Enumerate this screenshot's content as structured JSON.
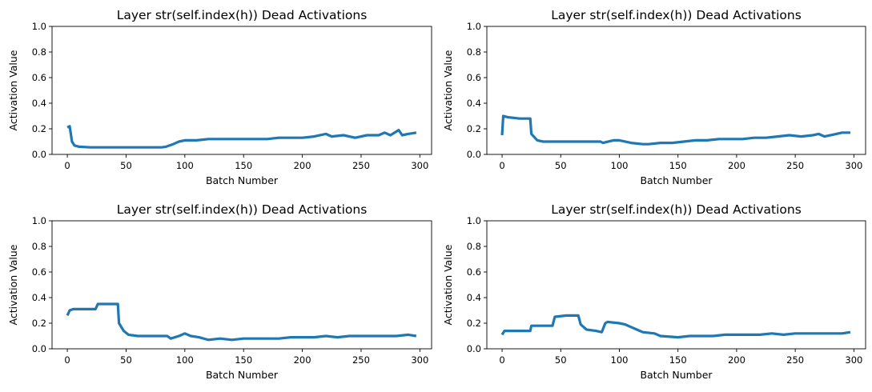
{
  "chart_data": [
    {
      "type": "line",
      "title": "Layer str(self.index(h)) Dead Activations",
      "xlabel": "Batch Number",
      "ylabel": "Activation Value",
      "xlim": [
        -13,
        310
      ],
      "ylim": [
        0,
        1
      ],
      "xticks": [
        0,
        50,
        100,
        150,
        200,
        250,
        300
      ],
      "yticks": [
        0.0,
        0.2,
        0.4,
        0.6,
        0.8,
        1.0
      ],
      "series": [
        {
          "color": "#1f77b4",
          "points": [
            [
              0,
              0.21
            ],
            [
              2,
              0.22
            ],
            [
              4,
              0.1
            ],
            [
              6,
              0.07
            ],
            [
              10,
              0.06
            ],
            [
              20,
              0.055
            ],
            [
              40,
              0.055
            ],
            [
              60,
              0.055
            ],
            [
              80,
              0.055
            ],
            [
              84,
              0.06
            ],
            [
              90,
              0.08
            ],
            [
              95,
              0.1
            ],
            [
              100,
              0.11
            ],
            [
              110,
              0.11
            ],
            [
              120,
              0.12
            ],
            [
              130,
              0.12
            ],
            [
              140,
              0.12
            ],
            [
              150,
              0.12
            ],
            [
              160,
              0.12
            ],
            [
              170,
              0.12
            ],
            [
              180,
              0.13
            ],
            [
              190,
              0.13
            ],
            [
              200,
              0.13
            ],
            [
              210,
              0.14
            ],
            [
              220,
              0.16
            ],
            [
              225,
              0.14
            ],
            [
              235,
              0.15
            ],
            [
              245,
              0.13
            ],
            [
              255,
              0.15
            ],
            [
              265,
              0.15
            ],
            [
              270,
              0.17
            ],
            [
              275,
              0.15
            ],
            [
              282,
              0.19
            ],
            [
              285,
              0.15
            ],
            [
              290,
              0.16
            ],
            [
              297,
              0.17
            ]
          ]
        }
      ]
    },
    {
      "type": "line",
      "title": "Layer str(self.index(h)) Dead Activations",
      "xlabel": "Batch Number",
      "ylabel": "Activation Value",
      "xlim": [
        -13,
        310
      ],
      "ylim": [
        0,
        1
      ],
      "xticks": [
        0,
        50,
        100,
        150,
        200,
        250,
        300
      ],
      "yticks": [
        0.0,
        0.2,
        0.4,
        0.6,
        0.8,
        1.0
      ],
      "series": [
        {
          "color": "#1f77b4",
          "points": [
            [
              0,
              0.15
            ],
            [
              1,
              0.3
            ],
            [
              5,
              0.29
            ],
            [
              15,
              0.28
            ],
            [
              24,
              0.28
            ],
            [
              25,
              0.16
            ],
            [
              30,
              0.11
            ],
            [
              35,
              0.1
            ],
            [
              50,
              0.1
            ],
            [
              70,
              0.1
            ],
            [
              84,
              0.1
            ],
            [
              86,
              0.09
            ],
            [
              95,
              0.11
            ],
            [
              100,
              0.11
            ],
            [
              110,
              0.09
            ],
            [
              120,
              0.08
            ],
            [
              125,
              0.08
            ],
            [
              135,
              0.09
            ],
            [
              145,
              0.09
            ],
            [
              155,
              0.1
            ],
            [
              165,
              0.11
            ],
            [
              175,
              0.11
            ],
            [
              185,
              0.12
            ],
            [
              195,
              0.12
            ],
            [
              205,
              0.12
            ],
            [
              215,
              0.13
            ],
            [
              225,
              0.13
            ],
            [
              235,
              0.14
            ],
            [
              245,
              0.15
            ],
            [
              255,
              0.14
            ],
            [
              265,
              0.15
            ],
            [
              270,
              0.16
            ],
            [
              275,
              0.14
            ],
            [
              285,
              0.16
            ],
            [
              290,
              0.17
            ],
            [
              297,
              0.17
            ]
          ]
        }
      ]
    },
    {
      "type": "line",
      "title": "Layer str(self.index(h)) Dead Activations",
      "xlabel": "Batch Number",
      "ylabel": "Activation Value",
      "xlim": [
        -13,
        310
      ],
      "ylim": [
        0,
        1
      ],
      "xticks": [
        0,
        50,
        100,
        150,
        200,
        250,
        300
      ],
      "yticks": [
        0.0,
        0.2,
        0.4,
        0.6,
        0.8,
        1.0
      ],
      "series": [
        {
          "color": "#1f77b4",
          "points": [
            [
              0,
              0.26
            ],
            [
              2,
              0.3
            ],
            [
              5,
              0.31
            ],
            [
              15,
              0.31
            ],
            [
              24,
              0.31
            ],
            [
              26,
              0.35
            ],
            [
              30,
              0.35
            ],
            [
              40,
              0.35
            ],
            [
              43,
              0.35
            ],
            [
              44,
              0.2
            ],
            [
              48,
              0.14
            ],
            [
              52,
              0.11
            ],
            [
              60,
              0.1
            ],
            [
              75,
              0.1
            ],
            [
              85,
              0.1
            ],
            [
              88,
              0.08
            ],
            [
              95,
              0.1
            ],
            [
              100,
              0.12
            ],
            [
              105,
              0.1
            ],
            [
              112,
              0.09
            ],
            [
              120,
              0.07
            ],
            [
              130,
              0.08
            ],
            [
              140,
              0.07
            ],
            [
              150,
              0.08
            ],
            [
              160,
              0.08
            ],
            [
              170,
              0.08
            ],
            [
              180,
              0.08
            ],
            [
              190,
              0.09
            ],
            [
              200,
              0.09
            ],
            [
              210,
              0.09
            ],
            [
              220,
              0.1
            ],
            [
              230,
              0.09
            ],
            [
              240,
              0.1
            ],
            [
              250,
              0.1
            ],
            [
              260,
              0.1
            ],
            [
              270,
              0.1
            ],
            [
              280,
              0.1
            ],
            [
              290,
              0.11
            ],
            [
              297,
              0.1
            ]
          ]
        }
      ]
    },
    {
      "type": "line",
      "title": "Layer str(self.index(h)) Dead Activations",
      "xlabel": "Batch Number",
      "ylabel": "Activation Value",
      "xlim": [
        -13,
        310
      ],
      "ylim": [
        0,
        1
      ],
      "xticks": [
        0,
        50,
        100,
        150,
        200,
        250,
        300
      ],
      "yticks": [
        0.0,
        0.2,
        0.4,
        0.6,
        0.8,
        1.0
      ],
      "series": [
        {
          "color": "#1f77b4",
          "points": [
            [
              0,
              0.11
            ],
            [
              2,
              0.14
            ],
            [
              10,
              0.14
            ],
            [
              20,
              0.14
            ],
            [
              24,
              0.14
            ],
            [
              25,
              0.18
            ],
            [
              35,
              0.18
            ],
            [
              43,
              0.18
            ],
            [
              45,
              0.25
            ],
            [
              55,
              0.26
            ],
            [
              65,
              0.26
            ],
            [
              67,
              0.19
            ],
            [
              72,
              0.15
            ],
            [
              80,
              0.14
            ],
            [
              85,
              0.13
            ],
            [
              88,
              0.2
            ],
            [
              90,
              0.21
            ],
            [
              100,
              0.2
            ],
            [
              105,
              0.19
            ],
            [
              110,
              0.17
            ],
            [
              115,
              0.15
            ],
            [
              120,
              0.13
            ],
            [
              130,
              0.12
            ],
            [
              135,
              0.1
            ],
            [
              150,
              0.09
            ],
            [
              160,
              0.1
            ],
            [
              170,
              0.1
            ],
            [
              180,
              0.1
            ],
            [
              190,
              0.11
            ],
            [
              200,
              0.11
            ],
            [
              210,
              0.11
            ],
            [
              220,
              0.11
            ],
            [
              230,
              0.12
            ],
            [
              240,
              0.11
            ],
            [
              250,
              0.12
            ],
            [
              260,
              0.12
            ],
            [
              270,
              0.12
            ],
            [
              280,
              0.12
            ],
            [
              290,
              0.12
            ],
            [
              297,
              0.13
            ]
          ]
        }
      ]
    }
  ]
}
